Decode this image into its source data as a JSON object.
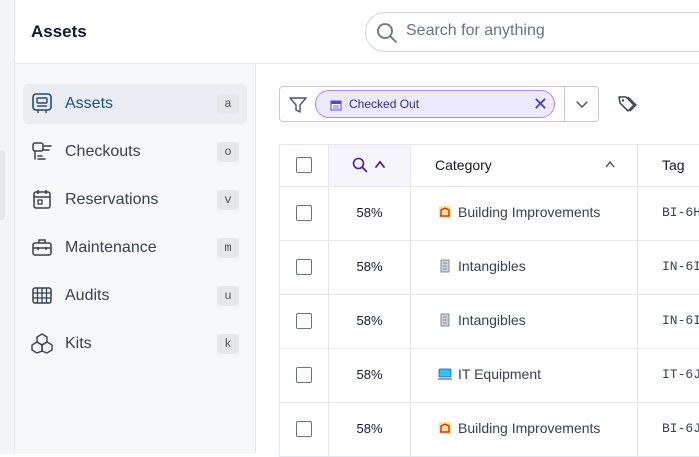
{
  "header": {
    "title": "Assets",
    "search_placeholder": "Search for anything"
  },
  "sidebar": {
    "items": [
      {
        "label": "Assets",
        "key": "a",
        "icon": "assets-icon",
        "active": true
      },
      {
        "label": "Checkouts",
        "key": "o",
        "icon": "checkouts-icon"
      },
      {
        "label": "Reservations",
        "key": "v",
        "icon": "reservations-icon"
      },
      {
        "label": "Maintenance",
        "key": "m",
        "icon": "maintenance-icon"
      },
      {
        "label": "Audits",
        "key": "u",
        "icon": "audits-icon"
      },
      {
        "label": "Kits",
        "key": "k",
        "icon": "kits-icon"
      }
    ]
  },
  "filter": {
    "chip_label": "Checked Out",
    "chip_remove": "✕"
  },
  "table": {
    "headers": {
      "category": "Category",
      "tag": "Tag"
    },
    "rows": [
      {
        "pct": "58%",
        "category": "Building Improvements",
        "cat_icon": "building-improvements-icon",
        "tag": "BI-6H"
      },
      {
        "pct": "58%",
        "category": "Intangibles",
        "cat_icon": "intangibles-icon",
        "tag": "IN-6I"
      },
      {
        "pct": "58%",
        "category": "Intangibles",
        "cat_icon": "intangibles-icon",
        "tag": "IN-6I"
      },
      {
        "pct": "58%",
        "category": "IT Equipment",
        "cat_icon": "it-equipment-icon",
        "tag": "IT-6J"
      },
      {
        "pct": "58%",
        "category": "Building Improvements",
        "cat_icon": "building-improvements-icon",
        "tag": "BI-6J"
      }
    ]
  },
  "colors": {
    "accent": "#1f4e79",
    "chip_bg": "#ede9fe",
    "chip_border": "#a78bfa"
  }
}
